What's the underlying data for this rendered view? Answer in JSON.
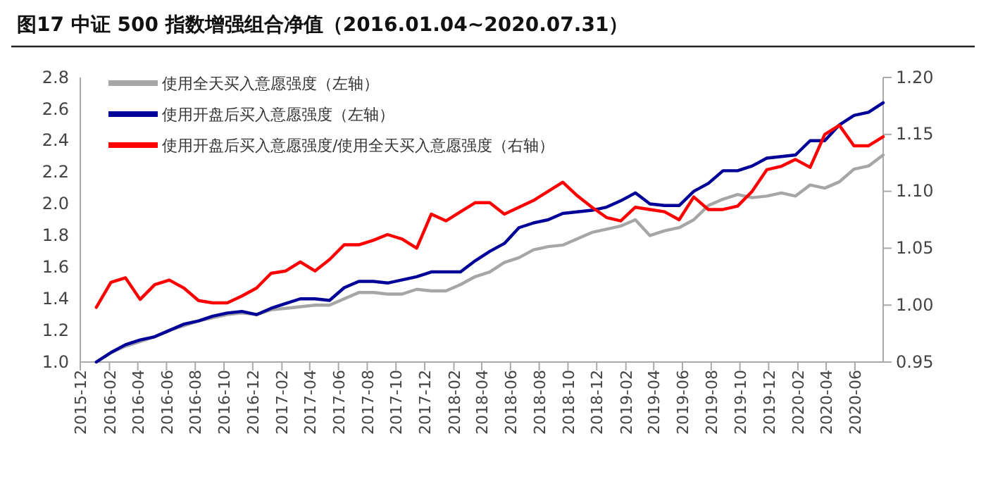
{
  "chart_data": {
    "type": "line",
    "title": "图17 中证 500 指数增强组合净值（2016.01.04~2020.07.31）",
    "x": [
      "2016-01-04",
      "2016-02-04",
      "2016-03-06",
      "2016-04-06",
      "2016-05-07",
      "2016-06-07",
      "2016-07-08",
      "2016-08-08",
      "2016-09-07",
      "2016-10-08",
      "2016-11-08",
      "2016-12-09",
      "2017-01-09",
      "2017-02-09",
      "2017-03-12",
      "2017-04-12",
      "2017-05-13",
      "2017-06-13",
      "2017-07-14",
      "2017-08-14",
      "2017-09-13",
      "2017-10-14",
      "2017-11-14",
      "2017-12-15",
      "2018-01-15",
      "2018-02-15",
      "2018-03-18",
      "2018-04-18",
      "2018-05-19",
      "2018-06-19",
      "2018-07-20",
      "2018-08-20",
      "2018-09-20",
      "2018-10-21",
      "2018-11-21",
      "2018-12-22",
      "2019-01-21",
      "2019-02-21",
      "2019-03-24",
      "2019-04-24",
      "2019-05-25",
      "2019-06-25",
      "2019-07-26",
      "2019-08-26",
      "2019-09-26",
      "2019-10-27",
      "2019-11-27",
      "2019-12-28",
      "2020-01-27",
      "2020-02-27",
      "2020-03-29",
      "2020-04-29",
      "2020-05-30",
      "2020-06-30",
      "2020-07-31"
    ],
    "series": [
      {
        "name": "使用全天买入意愿强度（左轴）",
        "color": "#a6a6a6",
        "values": [
          1.0,
          1.06,
          1.1,
          1.13,
          1.16,
          1.2,
          1.23,
          1.26,
          1.28,
          1.3,
          1.31,
          1.3,
          1.33,
          1.34,
          1.35,
          1.36,
          1.36,
          1.4,
          1.44,
          1.44,
          1.43,
          1.43,
          1.46,
          1.45,
          1.45,
          1.49,
          1.54,
          1.57,
          1.63,
          1.66,
          1.71,
          1.73,
          1.74,
          1.78,
          1.82,
          1.84,
          1.86,
          1.9,
          1.8,
          1.83,
          1.85,
          1.9,
          1.99,
          2.03,
          2.06,
          2.04,
          2.05,
          2.07,
          2.05,
          2.12,
          2.1,
          2.14,
          2.22,
          2.24,
          2.31
        ]
      },
      {
        "name": "使用开盘后买入意愿强度（左轴）",
        "color": "#000099",
        "values": [
          1.0,
          1.06,
          1.11,
          1.14,
          1.16,
          1.2,
          1.24,
          1.26,
          1.29,
          1.31,
          1.32,
          1.3,
          1.34,
          1.37,
          1.4,
          1.4,
          1.39,
          1.47,
          1.51,
          1.51,
          1.5,
          1.52,
          1.54,
          1.57,
          1.57,
          1.57,
          1.64,
          1.7,
          1.75,
          1.85,
          1.88,
          1.9,
          1.94,
          1.95,
          1.96,
          1.98,
          2.02,
          2.07,
          2.0,
          1.99,
          1.99,
          2.08,
          2.13,
          2.21,
          2.21,
          2.24,
          2.29,
          2.3,
          2.31,
          2.4,
          2.4,
          2.5,
          2.56,
          2.58,
          2.64
        ]
      },
      {
        "name": "使用开盘后买入意愿强度/使用全天买入意愿强度（右轴）",
        "color": "#ff0000",
        "axis": "y2",
        "values": [
          0.998,
          1.02,
          1.024,
          1.005,
          1.018,
          1.022,
          1.015,
          1.004,
          1.002,
          1.002,
          1.008,
          1.015,
          1.028,
          1.03,
          1.038,
          1.03,
          1.04,
          1.053,
          1.053,
          1.057,
          1.062,
          1.058,
          1.05,
          1.08,
          1.074,
          1.082,
          1.09,
          1.09,
          1.08,
          1.086,
          1.092,
          1.1,
          1.108,
          1.096,
          1.086,
          1.077,
          1.074,
          1.086,
          1.084,
          1.082,
          1.075,
          1.095,
          1.084,
          1.084,
          1.087,
          1.1,
          1.119,
          1.122,
          1.128,
          1.121,
          1.15,
          1.158,
          1.14,
          1.14,
          1.148
        ]
      }
    ],
    "xlim": [
      "2015-12-01",
      "2020-07-31"
    ],
    "xticks": [
      {
        "value": "2015-12-01",
        "label": "2015-12"
      },
      {
        "value": "2016-02-01",
        "label": "2016-02"
      },
      {
        "value": "2016-04-01",
        "label": "2016-04"
      },
      {
        "value": "2016-06-01",
        "label": "2016-06"
      },
      {
        "value": "2016-08-01",
        "label": "2016-08"
      },
      {
        "value": "2016-10-01",
        "label": "2016-10"
      },
      {
        "value": "2016-12-01",
        "label": "2016-12"
      },
      {
        "value": "2017-02-01",
        "label": "2017-02"
      },
      {
        "value": "2017-04-01",
        "label": "2017-04"
      },
      {
        "value": "2017-06-01",
        "label": "2017-06"
      },
      {
        "value": "2017-08-01",
        "label": "2017-08"
      },
      {
        "value": "2017-10-01",
        "label": "2017-10"
      },
      {
        "value": "2017-12-01",
        "label": "2017-12"
      },
      {
        "value": "2018-02-01",
        "label": "2018-02"
      },
      {
        "value": "2018-04-01",
        "label": "2018-04"
      },
      {
        "value": "2018-06-01",
        "label": "2018-06"
      },
      {
        "value": "2018-08-01",
        "label": "2018-08"
      },
      {
        "value": "2018-10-01",
        "label": "2018-10"
      },
      {
        "value": "2018-12-01",
        "label": "2018-12"
      },
      {
        "value": "2019-02-01",
        "label": "2019-02"
      },
      {
        "value": "2019-04-01",
        "label": "2019-04"
      },
      {
        "value": "2019-06-01",
        "label": "2019-06"
      },
      {
        "value": "2019-08-01",
        "label": "2019-08"
      },
      {
        "value": "2019-10-01",
        "label": "2019-10"
      },
      {
        "value": "2019-12-01",
        "label": "2019-12"
      },
      {
        "value": "2020-02-01",
        "label": "2020-02"
      },
      {
        "value": "2020-04-01",
        "label": "2020-04"
      },
      {
        "value": "2020-06-01",
        "label": "2020-06"
      }
    ],
    "ylim": [
      1.0,
      2.8
    ],
    "yticks": [
      {
        "value": 1.0,
        "label": "1.0"
      },
      {
        "value": 1.2,
        "label": "1.2"
      },
      {
        "value": 1.4,
        "label": "1.4"
      },
      {
        "value": 1.6,
        "label": "1.6"
      },
      {
        "value": 1.8,
        "label": "1.8"
      },
      {
        "value": 2.0,
        "label": "2.0"
      },
      {
        "value": 2.2,
        "label": "2.2"
      },
      {
        "value": 2.4,
        "label": "2.4"
      },
      {
        "value": 2.6,
        "label": "2.6"
      },
      {
        "value": 2.8,
        "label": "2.8"
      }
    ],
    "y2lim": [
      0.95,
      1.2
    ],
    "y2ticks": [
      {
        "value": 0.95,
        "label": "0.95"
      },
      {
        "value": 1.0,
        "label": "1.00"
      },
      {
        "value": 1.05,
        "label": "1.05"
      },
      {
        "value": 1.1,
        "label": "1.10"
      },
      {
        "value": 1.15,
        "label": "1.15"
      },
      {
        "value": 1.2,
        "label": "1.20"
      }
    ],
    "legend": "top left",
    "grid": false,
    "line_style": "solid",
    "marker": "none"
  }
}
